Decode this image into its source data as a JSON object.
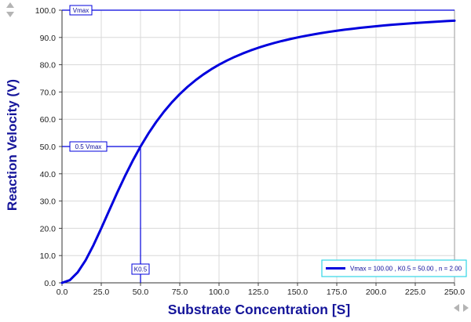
{
  "chart_data": {
    "type": "line",
    "xlabel": "Substrate Concentration [S]",
    "ylabel": "Reaction Velocity (V)",
    "xlim": [
      0,
      250
    ],
    "ylim": [
      0,
      100
    ],
    "x_ticks": [
      "0.0",
      "25.0",
      "50.0",
      "75.0",
      "100.0",
      "125.0",
      "150.0",
      "175.0",
      "200.0",
      "225.0",
      "250.0"
    ],
    "y_ticks": [
      "0.0",
      "10.0",
      "20.0",
      "30.0",
      "40.0",
      "50.0",
      "60.0",
      "70.0",
      "80.0",
      "90.0",
      "100.0"
    ],
    "grid": true,
    "legend_position": "bottom-right",
    "series": [
      {
        "name": "Vmax = 100.00 , K0.5 = 50.00 , n = 2.00",
        "color": "#0000dd",
        "x": [
          0,
          5,
          10,
          15,
          20,
          25,
          30,
          35,
          40,
          45,
          50,
          55,
          60,
          65,
          70,
          75,
          80,
          85,
          90,
          95,
          100,
          105,
          110,
          115,
          120,
          125,
          130,
          135,
          140,
          145,
          150,
          155,
          160,
          165,
          170,
          175,
          180,
          185,
          190,
          195,
          200,
          205,
          210,
          215,
          220,
          225,
          230,
          235,
          240,
          245,
          250
        ],
        "y": [
          0,
          0.99,
          3.85,
          8.26,
          13.79,
          20.0,
          26.47,
          32.89,
          39.02,
          44.75,
          50.0,
          54.75,
          59.02,
          62.82,
          66.22,
          69.23,
          71.91,
          74.29,
          76.42,
          78.31,
          80.0,
          81.52,
          82.88,
          84.1,
          85.21,
          86.21,
          87.11,
          87.94,
          88.69,
          89.37,
          90.0,
          90.57,
          91.1,
          91.59,
          92.04,
          92.45,
          92.84,
          93.19,
          93.52,
          93.83,
          94.12,
          94.39,
          94.64,
          94.87,
          95.09,
          95.29,
          95.48,
          95.67,
          95.84,
          96.0,
          96.15
        ]
      }
    ],
    "annotations": [
      {
        "label": "Vmax",
        "value": 100,
        "axis": "y",
        "kind": "horizontal-line"
      },
      {
        "label": "0.5 Vmax",
        "value": 50,
        "axis": "y",
        "kind": "reference"
      },
      {
        "label": "K0.5",
        "value": 50,
        "axis": "x",
        "kind": "reference"
      }
    ]
  },
  "colors": {
    "curve": "#0000dd",
    "axis_title": "#15159a",
    "legend_border": "#33d6e6",
    "grid": "#d8d8d8",
    "nav_arrow": "#b4b4b4"
  },
  "nav": {
    "top_left": [
      "up-arrow-icon",
      "down-arrow-icon"
    ],
    "bottom_right": [
      "left-arrow-icon",
      "right-arrow-icon"
    ]
  }
}
